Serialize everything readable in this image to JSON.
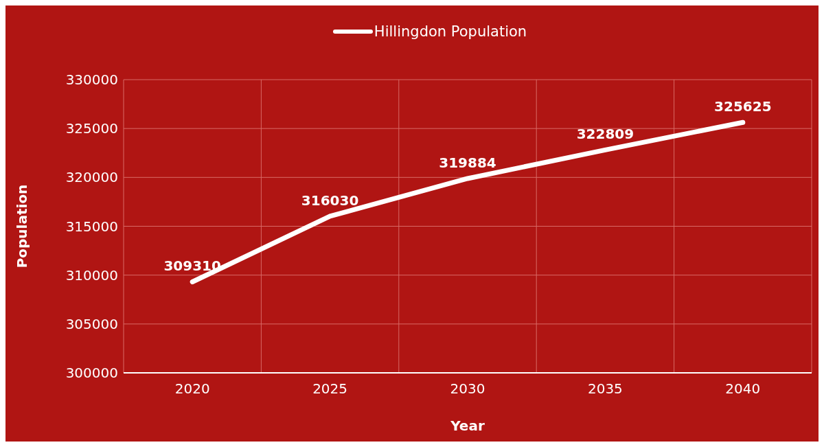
{
  "chart_data": {
    "type": "line",
    "xlabel": "Year",
    "ylabel": "Population",
    "categories": [
      "2020",
      "2025",
      "2030",
      "2035",
      "2040"
    ],
    "series": [
      {
        "name": "Hillingdon Population",
        "color": "#ffffff",
        "values": [
          309310,
          316030,
          319884,
          322809,
          325625
        ]
      }
    ],
    "ylim": [
      300000,
      330000
    ],
    "yticks": [
      300000,
      305000,
      310000,
      315000,
      320000,
      325000,
      330000
    ],
    "grid": true,
    "legend": "top",
    "data_labels": true,
    "marker": "circle",
    "line_style": "solid"
  }
}
